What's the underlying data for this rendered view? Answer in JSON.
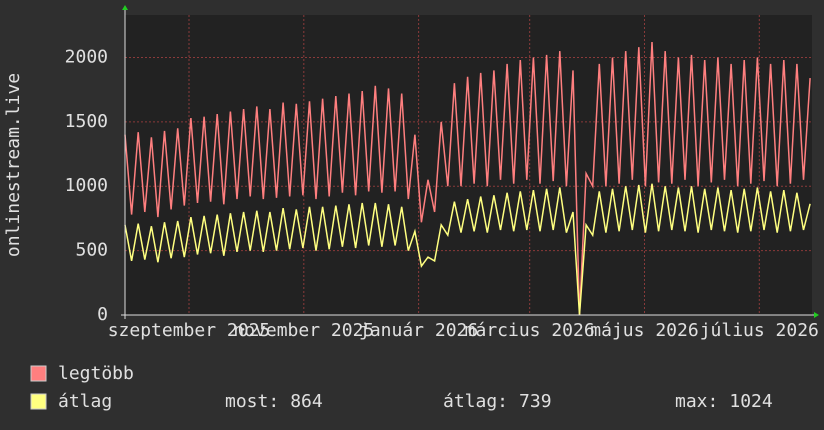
{
  "chart_data": {
    "type": "line",
    "ylabel": "onlinestream.live",
    "x": [
      0,
      3.5,
      7,
      10.5,
      14,
      17.5,
      21,
      24.5,
      28,
      31.5,
      35,
      38.5,
      42,
      45.5,
      49,
      52.5,
      56,
      59.5,
      63,
      66.5,
      70,
      73.5,
      77,
      80.5,
      84,
      87.5,
      91,
      94.5,
      98,
      101.5,
      105,
      108.5,
      112,
      115.5,
      119,
      122.5,
      126,
      129.5,
      133,
      136.5,
      140,
      143.5,
      147,
      150.5,
      154,
      157.5,
      161,
      164.5,
      168,
      171.5,
      175,
      178.5,
      182,
      185.5,
      189,
      192.5,
      196,
      199.5,
      203,
      206.5,
      210,
      213.5,
      217,
      220.5,
      224,
      227.5,
      231,
      234.5,
      238,
      241.5,
      245,
      248.5,
      252,
      255.5,
      259,
      262.5,
      266,
      269.5,
      273,
      276.5,
      280,
      283.5,
      287,
      290.5,
      294,
      297.5,
      301,
      304.5,
      308,
      311.5,
      315,
      318.5,
      322,
      325.5,
      329,
      332.5,
      336,
      339.5,
      343,
      346.5,
      350,
      353.5,
      357,
      360.5,
      364
    ],
    "series": [
      {
        "name": "legtöbb",
        "color": "#ff7f7f",
        "values": [
          1400,
          780,
          1420,
          800,
          1380,
          760,
          1430,
          820,
          1450,
          850,
          1530,
          870,
          1540,
          880,
          1560,
          860,
          1580,
          900,
          1600,
          920,
          1620,
          900,
          1600,
          910,
          1650,
          920,
          1640,
          930,
          1660,
          900,
          1680,
          920,
          1700,
          950,
          1720,
          930,
          1740,
          960,
          1780,
          950,
          1760,
          960,
          1720,
          900,
          1400,
          720,
          1050,
          800,
          1500,
          1000,
          1800,
          1000,
          1850,
          1020,
          1880,
          1000,
          1900,
          1050,
          1950,
          1020,
          1980,
          1050,
          2000,
          1020,
          2020,
          1040,
          2050,
          1000,
          1900,
          0,
          1100,
          1000,
          1950,
          1000,
          2000,
          1020,
          2050,
          1050,
          2080,
          1000,
          2120,
          1030,
          2050,
          1020,
          2000,
          1050,
          2020,
          1000,
          1980,
          1030,
          2000,
          1050,
          1950,
          1000,
          1980,
          1020,
          2000,
          1040,
          1950,
          1000,
          1980,
          1020,
          1950,
          1050,
          1840
        ]
      },
      {
        "name": "átlag",
        "color": "#ffff80",
        "values": [
          700,
          420,
          710,
          430,
          690,
          410,
          720,
          440,
          730,
          450,
          760,
          470,
          770,
          480,
          780,
          460,
          790,
          490,
          800,
          500,
          810,
          490,
          800,
          500,
          830,
          510,
          820,
          520,
          840,
          500,
          840,
          510,
          850,
          530,
          860,
          520,
          870,
          540,
          870,
          530,
          860,
          540,
          840,
          500,
          650,
          380,
          450,
          420,
          700,
          620,
          880,
          640,
          900,
          650,
          920,
          640,
          930,
          660,
          950,
          650,
          960,
          660,
          970,
          650,
          980,
          660,
          990,
          640,
          800,
          0,
          700,
          620,
          960,
          640,
          980,
          650,
          1000,
          660,
          1010,
          640,
          1020,
          650,
          1000,
          660,
          990,
          650,
          1000,
          640,
          980,
          660,
          990,
          650,
          970,
          640,
          980,
          650,
          990,
          660,
          960,
          640,
          970,
          650,
          950,
          660,
          864
        ]
      }
    ],
    "xlim": [
      0,
      365
    ],
    "xticks": [
      {
        "value": 34,
        "label": "szeptember 2025"
      },
      {
        "value": 95,
        "label": "november 2025"
      },
      {
        "value": 156,
        "label": "január 2026"
      },
      {
        "value": 215,
        "label": "március 2026"
      },
      {
        "value": 276,
        "label": "május 2026"
      },
      {
        "value": 337,
        "label": "július 2026"
      }
    ],
    "ylim": [
      0,
      2330
    ],
    "yticks": [
      0,
      500,
      1000,
      1500,
      2000
    ],
    "grid": true,
    "stats": [
      {
        "label": "most:",
        "value": 864
      },
      {
        "label": "átlag:",
        "value": 739
      },
      {
        "label": "max:",
        "value": 1024
      }
    ]
  }
}
